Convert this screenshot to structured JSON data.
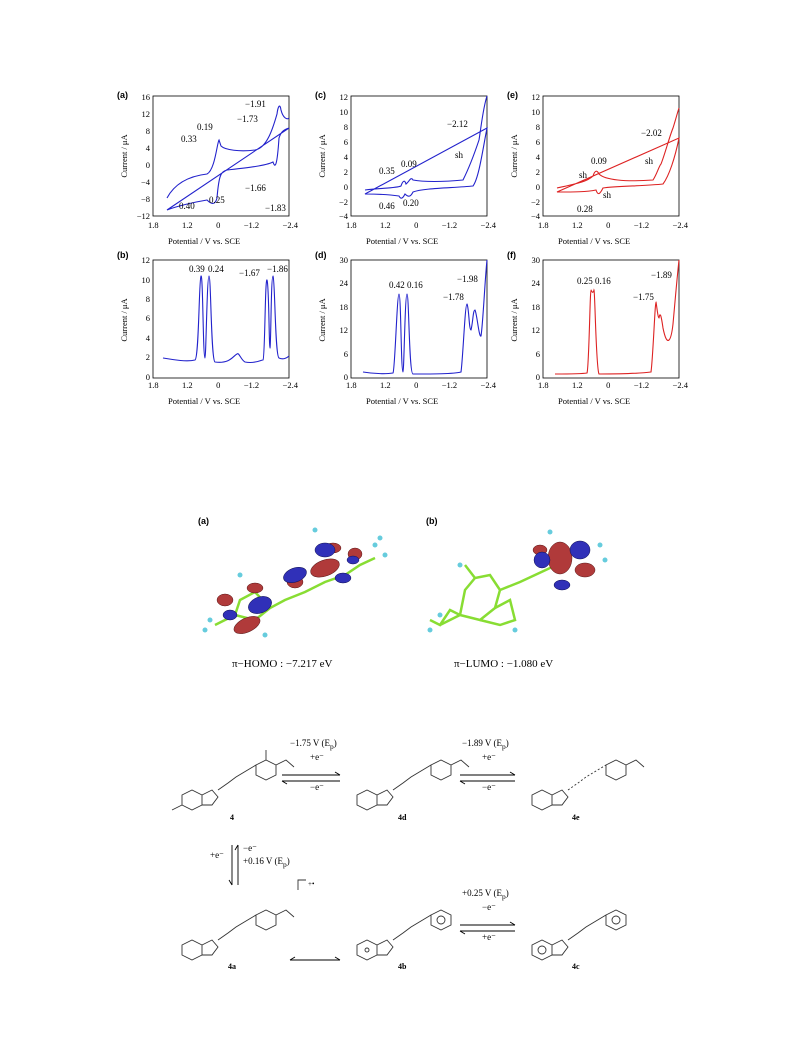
{
  "figure1": {
    "panels": [
      {
        "id": "a",
        "label": "(a)",
        "ylabel": "Current / μA",
        "xlabel": "Potential / V vs. SCE",
        "xticks": [
          "1.8",
          "1.2",
          "0",
          "−1.2",
          "−2.4"
        ],
        "yticks": [
          "16",
          "12",
          "8",
          "4",
          "0",
          "−4",
          "−8",
          "−12"
        ],
        "annotations": [
          "0.19",
          "0.33",
          "0.40",
          "0.25",
          "−1.91",
          "−1.73",
          "−1.66",
          "−1.83"
        ],
        "color": "#2222cc"
      },
      {
        "id": "b",
        "label": "(b)",
        "ylabel": "Current / μA",
        "xlabel": "Potential / V vs. SCE",
        "xticks": [
          "1.8",
          "1.2",
          "0",
          "−1.2",
          "−2.4"
        ],
        "yticks": [
          "12",
          "10",
          "8",
          "6",
          "4",
          "2",
          "0"
        ],
        "annotations": [
          "0.39",
          "0.24",
          "−1.67",
          "−1.86"
        ],
        "color": "#2222cc"
      },
      {
        "id": "c",
        "label": "(c)",
        "ylabel": "Current / μA",
        "xlabel": "Potential / V vs. SCE",
        "xticks": [
          "1.8",
          "1.2",
          "0",
          "−1.2",
          "−2.4"
        ],
        "yticks": [
          "12",
          "10",
          "8",
          "6",
          "4",
          "2",
          "0",
          "−2",
          "−4"
        ],
        "annotations": [
          "0.35",
          "0.09",
          "0.46",
          "0.20",
          "−2.12",
          "sh"
        ],
        "color": "#2222cc"
      },
      {
        "id": "d",
        "label": "(d)",
        "ylabel": "Current / μA",
        "xlabel": "Potential / V vs. SCE",
        "xticks": [
          "1.8",
          "1.2",
          "0",
          "−1.2",
          "−2.4"
        ],
        "yticks": [
          "30",
          "24",
          "18",
          "12",
          "6",
          "0"
        ],
        "annotations": [
          "0.42",
          "0.16",
          "−1.98",
          "−1.78"
        ],
        "color": "#2222cc"
      },
      {
        "id": "e",
        "label": "(e)",
        "ylabel": "Current / μA",
        "xlabel": "Potential / V vs. SCE",
        "xticks": [
          "1.8",
          "1.2",
          "0",
          "−1.2",
          "−2.4"
        ],
        "yticks": [
          "12",
          "10",
          "8",
          "6",
          "4",
          "2",
          "0",
          "−2",
          "−4"
        ],
        "annotations": [
          "0.09",
          "sh",
          "sh",
          "0.28",
          "−2.02",
          "sh"
        ],
        "color": "#dd2222"
      },
      {
        "id": "f",
        "label": "(f)",
        "ylabel": "Current / μA",
        "xlabel": "Potential / V vs. SCE",
        "xticks": [
          "1.8",
          "1.2",
          "0",
          "−1.2",
          "−2.4"
        ],
        "yticks": [
          "30",
          "24",
          "18",
          "12",
          "6",
          "0"
        ],
        "annotations": [
          "0.25",
          "0.16",
          "−1.89",
          "−1.75"
        ],
        "color": "#dd2222"
      }
    ]
  },
  "figure2": {
    "panel_a_label": "(a)",
    "panel_b_label": "(b)",
    "homo_caption": "π−HOMO : −7.217 eV",
    "lumo_caption": "π−LUMO : −1.080 eV"
  },
  "scheme": {
    "compounds": [
      "4",
      "4d",
      "4e",
      "4a",
      "4b",
      "4c"
    ],
    "step1": {
      "top": "−1.75 V (E",
      "sub": "p",
      "close": ")",
      "forward": "+e⁻",
      "back": "−e⁻"
    },
    "step2": {
      "top": "−1.89 V (E",
      "sub": "p",
      "close": ")",
      "forward": "+e⁻",
      "back": "−e⁻"
    },
    "step3": {
      "left": "+e⁻",
      "right_top": "−e⁻",
      "right_bottom": "+0.16 V (E",
      "sub": "p",
      "close": ")"
    },
    "step4": {
      "top": "+0.25 V (E",
      "sub": "p",
      "close": ")",
      "forward": "−e⁻",
      "back": "+e⁻"
    },
    "radical_cation_mark": "+•"
  },
  "colors": {
    "blue": "#2222cc",
    "red": "#dd2222",
    "orbital_red": "#b03a3a",
    "orbital_blue": "#3030b8",
    "carbon": "#88dd33",
    "hydrogen": "#66ccdd"
  }
}
